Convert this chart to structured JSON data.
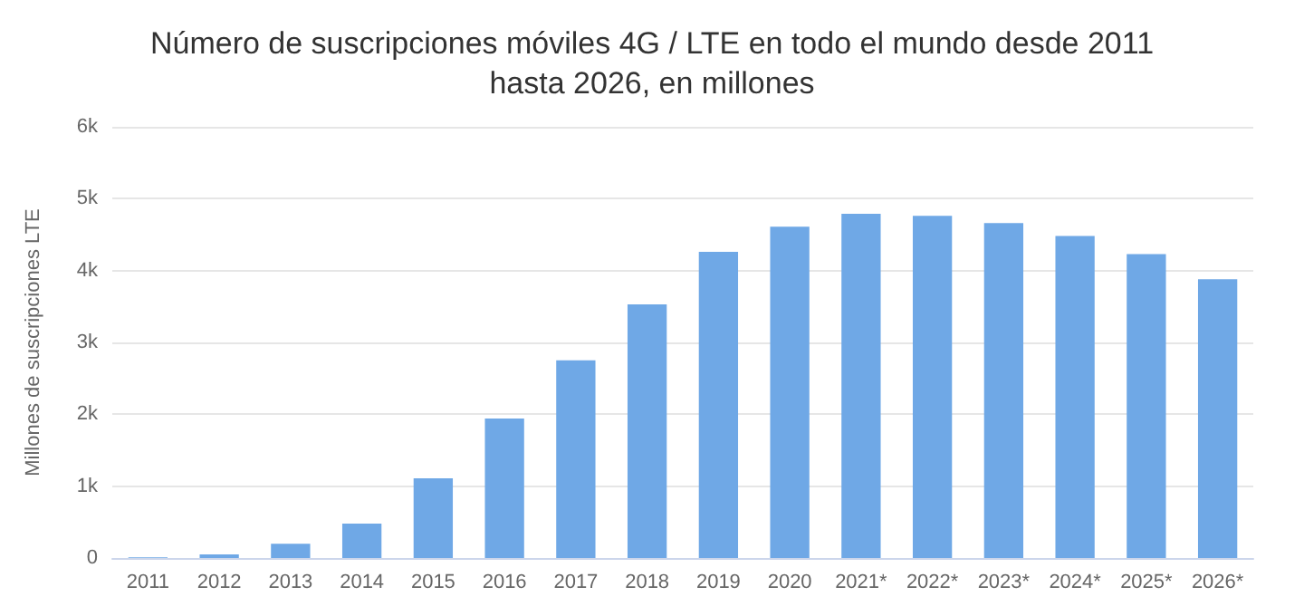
{
  "chart_data": {
    "type": "bar",
    "title": "Número de suscripciones móviles 4G / LTE en todo el mundo desde 2011\nhasta 2026, en millones",
    "ylabel": "Millones de suscripciones LTE",
    "categories": [
      "2011",
      "2012",
      "2013",
      "2014",
      "2015",
      "2016",
      "2017",
      "2018",
      "2019",
      "2020",
      "2021*",
      "2022*",
      "2023*",
      "2024*",
      "2025*",
      "2026*"
    ],
    "values": [
      10,
      50,
      200,
      480,
      1110,
      1940,
      2750,
      3530,
      4260,
      4610,
      4790,
      4760,
      4660,
      4480,
      4230,
      3880
    ],
    "color": "#6fa8e6",
    "ylim": [
      0,
      6000
    ],
    "yticks": [
      0,
      {
        "value": 1000,
        "label": "1k"
      },
      {
        "value": 2000,
        "label": "2k"
      },
      {
        "value": 3000,
        "label": "3k"
      },
      {
        "value": 4000,
        "label": "4k"
      },
      {
        "value": 5000,
        "label": "5k"
      },
      {
        "value": 6000,
        "label": "6k"
      }
    ],
    "grid": "y"
  }
}
